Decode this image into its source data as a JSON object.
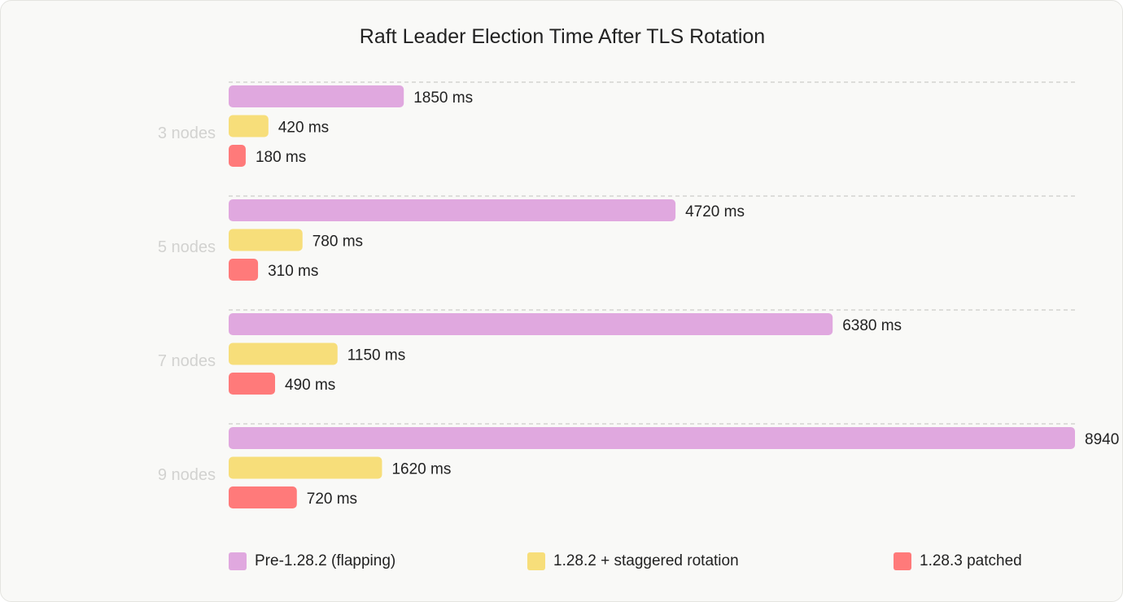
{
  "chart_data": {
    "type": "bar",
    "orientation": "horizontal",
    "title": "Raft Leader Election Time After TLS Rotation",
    "categories": [
      "3 nodes",
      "5 nodes",
      "7 nodes",
      "9 nodes"
    ],
    "unit": "ms",
    "xlim": [
      0,
      8940
    ],
    "grid": "dashed separator above each group",
    "legend_position": "bottom",
    "series": [
      {
        "name": "Pre-1.28.2 (flapping)",
        "color": "#e0a8df",
        "values": [
          1850,
          4720,
          6380,
          8940
        ]
      },
      {
        "name": "1.28.2 + staggered rotation",
        "color": "#f7de7a",
        "values": [
          420,
          780,
          1150,
          1620
        ]
      },
      {
        "name": "1.28.3 patched",
        "color": "#ff7a7a",
        "values": [
          180,
          310,
          490,
          720
        ]
      }
    ]
  }
}
